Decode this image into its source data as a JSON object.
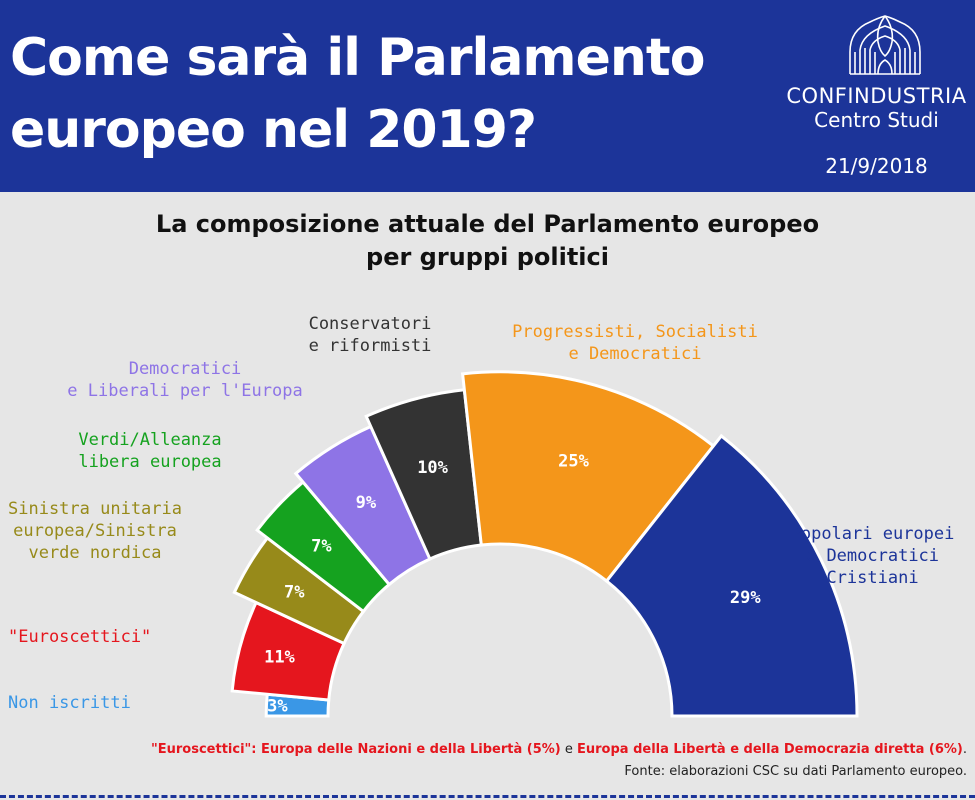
{
  "header": {
    "title_line1": "Come sarà il Parlamento",
    "title_line2": "europeo nel 2019?",
    "org_name": "CONFINDUSTRIA",
    "org_sub": "Centro Studi",
    "date": "21/9/2018"
  },
  "colors": {
    "header_bg": "#1c3499",
    "background": "#e6e6e6",
    "eurosceptic_red": "#e5161e"
  },
  "chart_data": {
    "type": "pie",
    "variant": "parliament-semicircle",
    "title_line1": "La composizione attuale del Parlamento europeo",
    "title_line2": "per gruppi politici",
    "slices": [
      {
        "label_lines": [
          "Non iscritti"
        ],
        "value": 3,
        "value_label": "3%",
        "color": "#3a97e6",
        "label_color": "#3a97e6"
      },
      {
        "label_lines": [
          "\"Euroscettici\""
        ],
        "value": 11,
        "value_label": "11%",
        "color": "#e5161e",
        "label_color": "#e5161e"
      },
      {
        "label_lines": [
          "Sinistra unitaria",
          "europea/Sinistra",
          "verde nordica"
        ],
        "value": 7,
        "value_label": "7%",
        "color": "#978a1a",
        "label_color": "#978a1a"
      },
      {
        "label_lines": [
          "Verdi/Alleanza",
          "libera europea"
        ],
        "value": 7,
        "value_label": "7%",
        "color": "#15a21f",
        "label_color": "#15a21f"
      },
      {
        "label_lines": [
          "Democratici",
          "e Liberali per l'Europa"
        ],
        "value": 9,
        "value_label": "9%",
        "color": "#8e74e6",
        "label_color": "#8e74e6"
      },
      {
        "label_lines": [
          "Conservatori",
          "e riformisti"
        ],
        "value": 10,
        "value_label": "10%",
        "color": "#333333",
        "label_color": "#333333"
      },
      {
        "label_lines": [
          "Progressisti, Socialisti",
          "e Democratici"
        ],
        "value": 25,
        "value_label": "25%",
        "color": "#f4961a",
        "label_color": "#f4961a"
      },
      {
        "label_lines": [
          "Popolari europei",
          "e Democratici",
          "Cristiani"
        ],
        "value": 29,
        "value_label": "29%",
        "color": "#1c3499",
        "label_color": "#1c3499"
      }
    ]
  },
  "footnote": {
    "part1": "\"Euroscettici\": Europa delle Nazioni e della Libertà (5%)",
    "part2": " e ",
    "part3": "Europa della Libertà e della Democrazia diretta (6%)",
    "part4": "."
  },
  "source": "Fonte: elaborazioni CSC su dati Parlamento europeo."
}
